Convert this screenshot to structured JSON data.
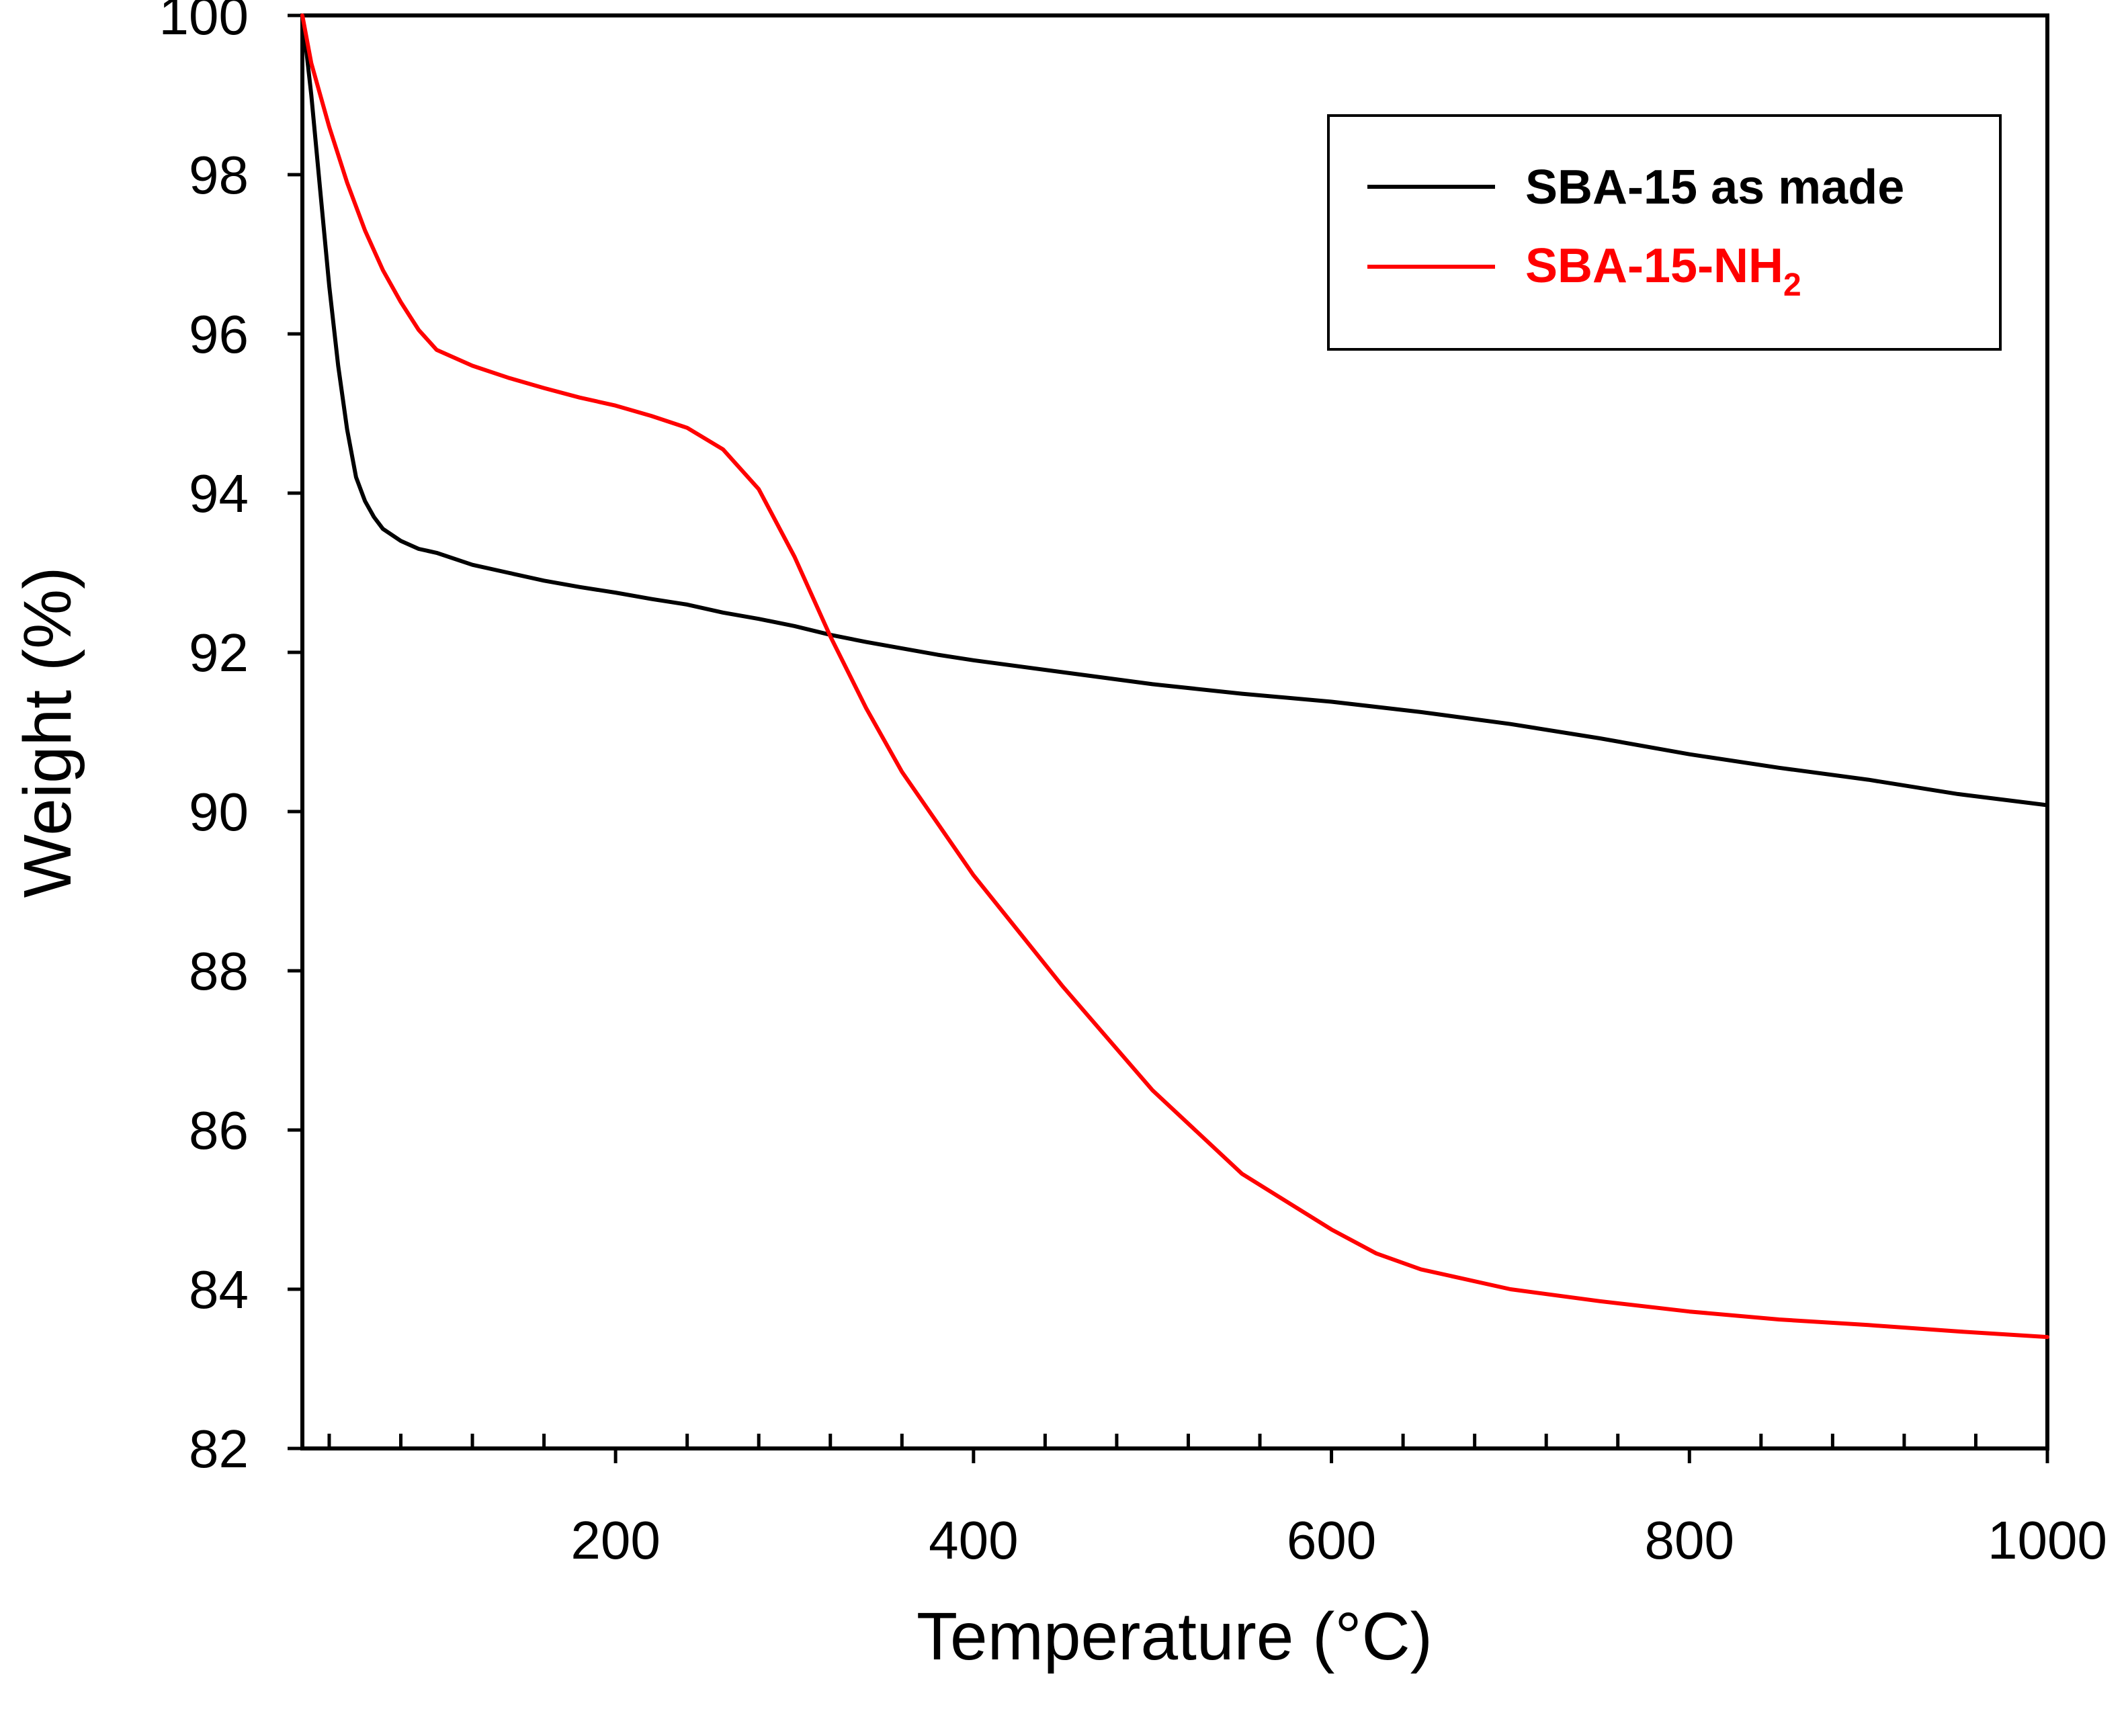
{
  "chart_data": {
    "type": "line",
    "xlabel": "Temperature (°C)",
    "ylabel": "Weight (%)",
    "xlim": [
      25,
      1000
    ],
    "ylim": [
      82,
      100
    ],
    "x_ticks": [
      200,
      400,
      600,
      800,
      1000
    ],
    "x_minor_step": 40,
    "y_ticks": [
      82,
      84,
      86,
      88,
      90,
      92,
      94,
      96,
      98,
      100
    ],
    "grid": false,
    "legend_position": "top-right",
    "series": [
      {
        "name": "SBA-15 as made",
        "color": "#000000",
        "x": [
          25,
          30,
          35,
          40,
          45,
          50,
          55,
          60,
          65,
          70,
          80,
          90,
          100,
          120,
          140,
          160,
          180,
          200,
          220,
          240,
          260,
          280,
          300,
          320,
          340,
          360,
          380,
          400,
          450,
          500,
          550,
          600,
          650,
          700,
          750,
          800,
          850,
          900,
          950,
          1000
        ],
        "y": [
          100,
          99.0,
          97.8,
          96.6,
          95.6,
          94.8,
          94.2,
          93.9,
          93.7,
          93.55,
          93.4,
          93.3,
          93.25,
          93.1,
          93.0,
          92.9,
          92.82,
          92.75,
          92.67,
          92.6,
          92.5,
          92.42,
          92.33,
          92.22,
          92.13,
          92.05,
          91.97,
          91.9,
          91.75,
          91.6,
          91.48,
          91.38,
          91.25,
          91.1,
          90.92,
          90.72,
          90.55,
          90.4,
          90.22,
          90.08
        ]
      },
      {
        "name": "SBA-15-NH2",
        "color": "#ff0000",
        "x": [
          25,
          30,
          40,
          50,
          60,
          70,
          80,
          90,
          100,
          120,
          140,
          160,
          180,
          200,
          220,
          240,
          260,
          280,
          300,
          320,
          340,
          360,
          380,
          400,
          450,
          500,
          550,
          600,
          625,
          650,
          700,
          750,
          800,
          850,
          900,
          950,
          1000
        ],
        "y": [
          100,
          99.4,
          98.6,
          97.9,
          97.3,
          96.8,
          96.4,
          96.05,
          95.8,
          95.6,
          95.45,
          95.32,
          95.2,
          95.1,
          94.97,
          94.82,
          94.55,
          94.05,
          93.2,
          92.2,
          91.3,
          90.5,
          89.85,
          89.2,
          87.8,
          86.5,
          85.45,
          84.75,
          84.45,
          84.25,
          84.0,
          83.85,
          83.72,
          83.62,
          83.55,
          83.47,
          83.4
        ]
      }
    ]
  },
  "legend": {
    "entry_1": "SBA-15 as made",
    "entry_2_main": "SBA-15-NH",
    "entry_2_sub": "2"
  }
}
